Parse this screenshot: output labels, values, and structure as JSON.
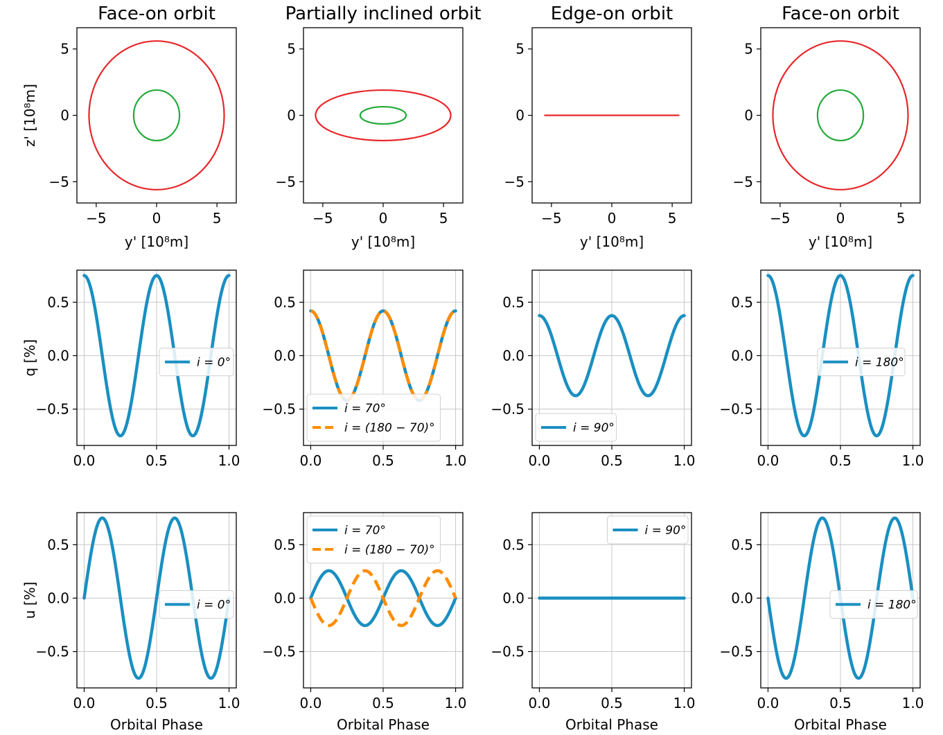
{
  "colors": {
    "outer_orbit": "#e8262a",
    "inner_orbit": "#22aa3a",
    "prograde": "#1a8fc1",
    "retrograde": "#ff8c00",
    "grid": "#c8c8c8"
  },
  "chart_data": [
    {
      "type": "line",
      "row": 0,
      "col": 0,
      "title": "Face-on orbit",
      "xlabel": "y' [10⁸m]",
      "ylabel": "z' [10⁸m]",
      "xlim": [
        -6.6,
        6.6
      ],
      "ylim": [
        -6.6,
        6.6
      ],
      "xticks": [
        -5,
        0,
        5
      ],
      "yticks": [
        -5,
        0,
        5
      ],
      "xtick_labels": [
        "−5",
        "0",
        "5"
      ],
      "ytick_labels": [
        "−5",
        "0",
        "5"
      ],
      "grid": false,
      "aspect": "equal",
      "series": [
        {
          "kind": "ellipse",
          "rx": 5.6,
          "ry": 5.6,
          "color": "outer_orbit"
        },
        {
          "kind": "ellipse",
          "rx": 1.9,
          "ry": 1.9,
          "color": "inner_orbit"
        }
      ]
    },
    {
      "type": "line",
      "row": 0,
      "col": 1,
      "title": "Partially inclined orbit",
      "xlabel": "y' [10⁸m]",
      "ylabel": "",
      "xlim": [
        -6.6,
        6.6
      ],
      "ylim": [
        -6.6,
        6.6
      ],
      "xticks": [
        -5,
        0,
        5
      ],
      "yticks": [
        -5,
        0,
        5
      ],
      "xtick_labels": [
        "−5",
        "0",
        "5"
      ],
      "ytick_labels": [
        "−5",
        "0",
        "5"
      ],
      "grid": false,
      "aspect": "equal",
      "series": [
        {
          "kind": "ellipse",
          "rx": 5.6,
          "ry": 1.9,
          "color": "outer_orbit"
        },
        {
          "kind": "ellipse",
          "rx": 1.9,
          "ry": 0.65,
          "color": "inner_orbit"
        }
      ]
    },
    {
      "type": "line",
      "row": 0,
      "col": 2,
      "title": "Edge-on orbit",
      "xlabel": "y' [10⁸m]",
      "ylabel": "",
      "xlim": [
        -6.6,
        6.6
      ],
      "ylim": [
        -6.6,
        6.6
      ],
      "xticks": [
        -5,
        0,
        5
      ],
      "yticks": [
        -5,
        0,
        5
      ],
      "xtick_labels": [
        "−5",
        "0",
        "5"
      ],
      "ytick_labels": [
        "−5",
        "0",
        "5"
      ],
      "grid": false,
      "aspect": "equal",
      "series": [
        {
          "kind": "ellipse",
          "rx": 5.6,
          "ry": 0,
          "color": "outer_orbit"
        }
      ]
    },
    {
      "type": "line",
      "row": 0,
      "col": 3,
      "title": "Face-on orbit",
      "xlabel": "y' [10⁸m]",
      "ylabel": "",
      "xlim": [
        -6.6,
        6.6
      ],
      "ylim": [
        -6.6,
        6.6
      ],
      "xticks": [
        -5,
        0,
        5
      ],
      "yticks": [
        -5,
        0,
        5
      ],
      "xtick_labels": [
        "−5",
        "0",
        "5"
      ],
      "ytick_labels": [
        "−5",
        "0",
        "5"
      ],
      "grid": false,
      "aspect": "equal",
      "series": [
        {
          "kind": "ellipse",
          "rx": 5.6,
          "ry": 5.6,
          "color": "outer_orbit"
        },
        {
          "kind": "ellipse",
          "rx": 1.9,
          "ry": 1.9,
          "color": "inner_orbit"
        }
      ]
    },
    {
      "type": "line",
      "row": 1,
      "col": 0,
      "title": "",
      "xlabel": "",
      "ylabel": "q [%]",
      "xlim": [
        -0.05,
        1.05
      ],
      "ylim": [
        -0.84,
        0.8
      ],
      "xticks": [
        0,
        0.5,
        1
      ],
      "yticks": [
        -0.5,
        0,
        0.5
      ],
      "xtick_labels": [
        "0.0",
        "0.5",
        "1.0"
      ],
      "ytick_labels": [
        "−0.5",
        "0.0",
        "0.5"
      ],
      "grid": true,
      "series": [
        {
          "name": "i = 0°",
          "kind": "q",
          "i": 0,
          "color": "prograde",
          "dash": false
        }
      ],
      "legend": {
        "position": "center-right",
        "entries": [
          {
            "label": "i = 0°",
            "color": "prograde",
            "dash": false
          }
        ]
      }
    },
    {
      "type": "line",
      "row": 1,
      "col": 1,
      "title": "",
      "xlabel": "",
      "ylabel": "",
      "xlim": [
        -0.05,
        1.05
      ],
      "ylim": [
        -0.84,
        0.8
      ],
      "xticks": [
        0,
        0.5,
        1
      ],
      "yticks": [
        -0.5,
        0,
        0.5
      ],
      "xtick_labels": [
        "0.0",
        "0.5",
        "1.0"
      ],
      "ytick_labels": [
        "−0.5",
        "0.0",
        "0.5"
      ],
      "grid": true,
      "series": [
        {
          "name": "i = 70°",
          "kind": "q",
          "i": 70,
          "color": "prograde",
          "dash": false
        },
        {
          "name": "i = (180 − 70)°",
          "kind": "q",
          "i": 110,
          "color": "retrograde",
          "dash": true
        }
      ],
      "legend": {
        "position": "lower-left",
        "entries": [
          {
            "label": "i = 70°",
            "color": "prograde",
            "dash": false
          },
          {
            "label": "i = (180 − 70)°",
            "color": "retrograde",
            "dash": true
          }
        ]
      }
    },
    {
      "type": "line",
      "row": 1,
      "col": 2,
      "title": "",
      "xlabel": "",
      "ylabel": "",
      "xlim": [
        -0.05,
        1.05
      ],
      "ylim": [
        -0.84,
        0.8
      ],
      "xticks": [
        0,
        0.5,
        1
      ],
      "yticks": [
        -0.5,
        0,
        0.5
      ],
      "xtick_labels": [
        "0.0",
        "0.5",
        "1.0"
      ],
      "ytick_labels": [
        "−0.5",
        "0.0",
        "0.5"
      ],
      "grid": true,
      "series": [
        {
          "name": "i = 90°",
          "kind": "q",
          "i": 90,
          "color": "prograde",
          "dash": false
        }
      ],
      "legend": {
        "position": "lower-left",
        "entries": [
          {
            "label": "i = 90°",
            "color": "prograde",
            "dash": false
          }
        ]
      }
    },
    {
      "type": "line",
      "row": 1,
      "col": 3,
      "title": "",
      "xlabel": "",
      "ylabel": "",
      "xlim": [
        -0.05,
        1.05
      ],
      "ylim": [
        -0.84,
        0.8
      ],
      "xticks": [
        0,
        0.5,
        1
      ],
      "yticks": [
        -0.5,
        0,
        0.5
      ],
      "xtick_labels": [
        "0.0",
        "0.5",
        "1.0"
      ],
      "ytick_labels": [
        "−0.5",
        "0.0",
        "0.5"
      ],
      "grid": true,
      "series": [
        {
          "name": "i = 180°",
          "kind": "q",
          "i": 180,
          "color": "prograde",
          "dash": false
        }
      ],
      "legend": {
        "position": "center",
        "entries": [
          {
            "label": "i = 180°",
            "color": "prograde",
            "dash": false
          }
        ]
      }
    },
    {
      "type": "line",
      "row": 2,
      "col": 0,
      "title": "",
      "xlabel": "Orbital Phase",
      "ylabel": "u [%]",
      "xlim": [
        -0.05,
        1.05
      ],
      "ylim": [
        -0.84,
        0.8
      ],
      "xticks": [
        0,
        0.5,
        1
      ],
      "yticks": [
        -0.5,
        0,
        0.5
      ],
      "xtick_labels": [
        "0.0",
        "0.5",
        "1.0"
      ],
      "ytick_labels": [
        "−0.5",
        "0.0",
        "0.5"
      ],
      "grid": true,
      "series": [
        {
          "name": "i = 0°",
          "kind": "u",
          "i": 0,
          "color": "prograde",
          "dash": false
        }
      ],
      "legend": {
        "position": "center-right",
        "entries": [
          {
            "label": "i = 0°",
            "color": "prograde",
            "dash": false
          }
        ]
      }
    },
    {
      "type": "line",
      "row": 2,
      "col": 1,
      "title": "",
      "xlabel": "Orbital Phase",
      "ylabel": "",
      "xlim": [
        -0.05,
        1.05
      ],
      "ylim": [
        -0.84,
        0.8
      ],
      "xticks": [
        0,
        0.5,
        1
      ],
      "yticks": [
        -0.5,
        0,
        0.5
      ],
      "xtick_labels": [
        "0.0",
        "0.5",
        "1.0"
      ],
      "ytick_labels": [
        "−0.5",
        "0.0",
        "0.5"
      ],
      "grid": true,
      "series": [
        {
          "name": "i = 70°",
          "kind": "u",
          "i": 70,
          "color": "prograde",
          "dash": false
        },
        {
          "name": "i = (180 − 70)°",
          "kind": "u",
          "i": 110,
          "color": "retrograde",
          "dash": true
        }
      ],
      "legend": {
        "position": "upper-left",
        "entries": [
          {
            "label": "i = 70°",
            "color": "prograde",
            "dash": false
          },
          {
            "label": "i = (180 − 70)°",
            "color": "retrograde",
            "dash": true
          }
        ]
      }
    },
    {
      "type": "line",
      "row": 2,
      "col": 2,
      "title": "",
      "xlabel": "Orbital Phase",
      "ylabel": "",
      "xlim": [
        -0.05,
        1.05
      ],
      "ylim": [
        -0.84,
        0.8
      ],
      "xticks": [
        0,
        0.5,
        1
      ],
      "yticks": [
        -0.5,
        0,
        0.5
      ],
      "xtick_labels": [
        "0.0",
        "0.5",
        "1.0"
      ],
      "ytick_labels": [
        "−0.5",
        "0.0",
        "0.5"
      ],
      "grid": true,
      "series": [
        {
          "name": "i = 90°",
          "kind": "u",
          "i": 90,
          "color": "prograde",
          "dash": false
        }
      ],
      "legend": {
        "position": "upper-right",
        "entries": [
          {
            "label": "i = 90°",
            "color": "prograde",
            "dash": false
          }
        ]
      }
    },
    {
      "type": "line",
      "row": 2,
      "col": 3,
      "title": "",
      "xlabel": "Orbital Phase",
      "ylabel": "",
      "xlim": [
        -0.05,
        1.05
      ],
      "ylim": [
        -0.84,
        0.8
      ],
      "xticks": [
        0,
        0.5,
        1
      ],
      "yticks": [
        -0.5,
        0,
        0.5
      ],
      "xtick_labels": [
        "0.0",
        "0.5",
        "1.0"
      ],
      "ytick_labels": [
        "−0.5",
        "0.0",
        "0.5"
      ],
      "grid": true,
      "series": [
        {
          "name": "i = 180°",
          "kind": "u",
          "i": 180,
          "color": "prograde",
          "dash": false
        }
      ],
      "legend": {
        "position": "center-right",
        "entries": [
          {
            "label": "i = 180°",
            "color": "prograde",
            "dash": false
          }
        ]
      }
    }
  ]
}
